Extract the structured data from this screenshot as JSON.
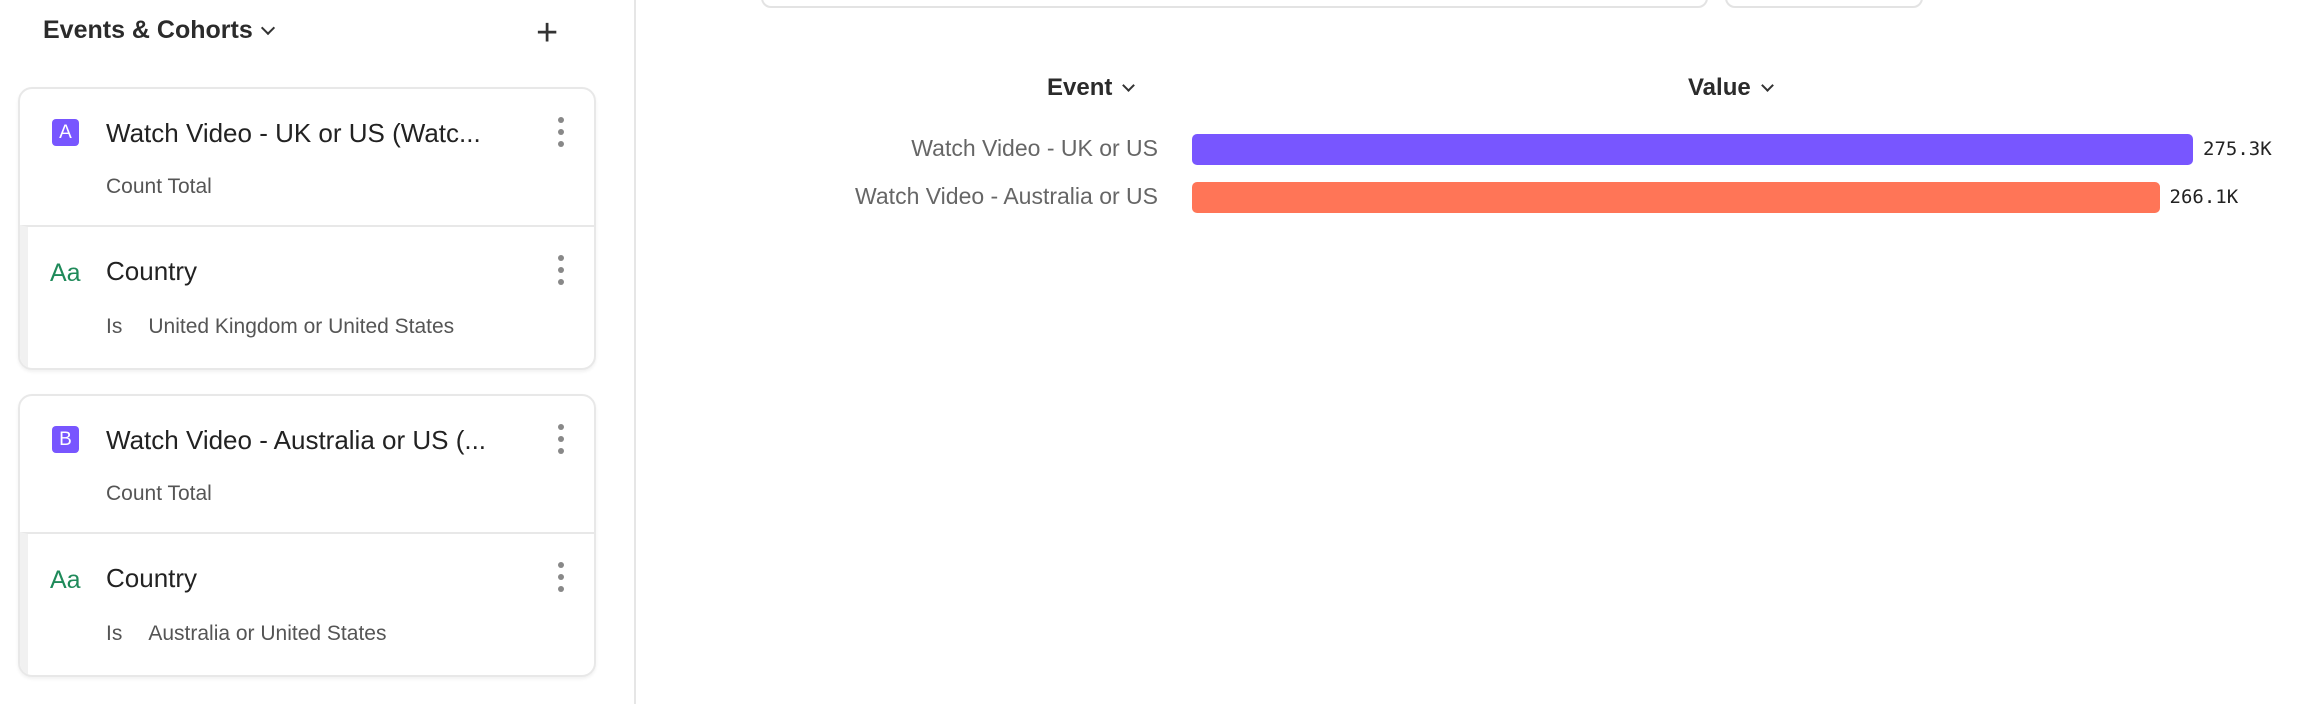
{
  "sidebar": {
    "title": "Events & Cohorts",
    "add_icon": "plus-icon",
    "cards": [
      {
        "badge": "A",
        "name": "Watch Video - UK or US (Watc...",
        "measure": "Count Total",
        "filter": {
          "icon": "Aa",
          "property": "Country",
          "operator": "Is",
          "value": "United Kingdom or United States"
        }
      },
      {
        "badge": "B",
        "name": "Watch Video - Australia or US (...",
        "measure": "Count Total",
        "filter": {
          "icon": "Aa",
          "property": "Country",
          "operator": "Is",
          "value": "Australia or United States"
        }
      }
    ]
  },
  "chart_data": {
    "type": "bar",
    "orientation": "horizontal",
    "columns": {
      "event": "Event",
      "value": "Value"
    },
    "categories": [
      "Watch Video - UK or US",
      "Watch Video - Australia or US"
    ],
    "values": [
      275300,
      266100
    ],
    "value_labels": [
      "275.3K",
      "266.1K"
    ],
    "colors": [
      "#7856ff",
      "#ff7557"
    ]
  }
}
